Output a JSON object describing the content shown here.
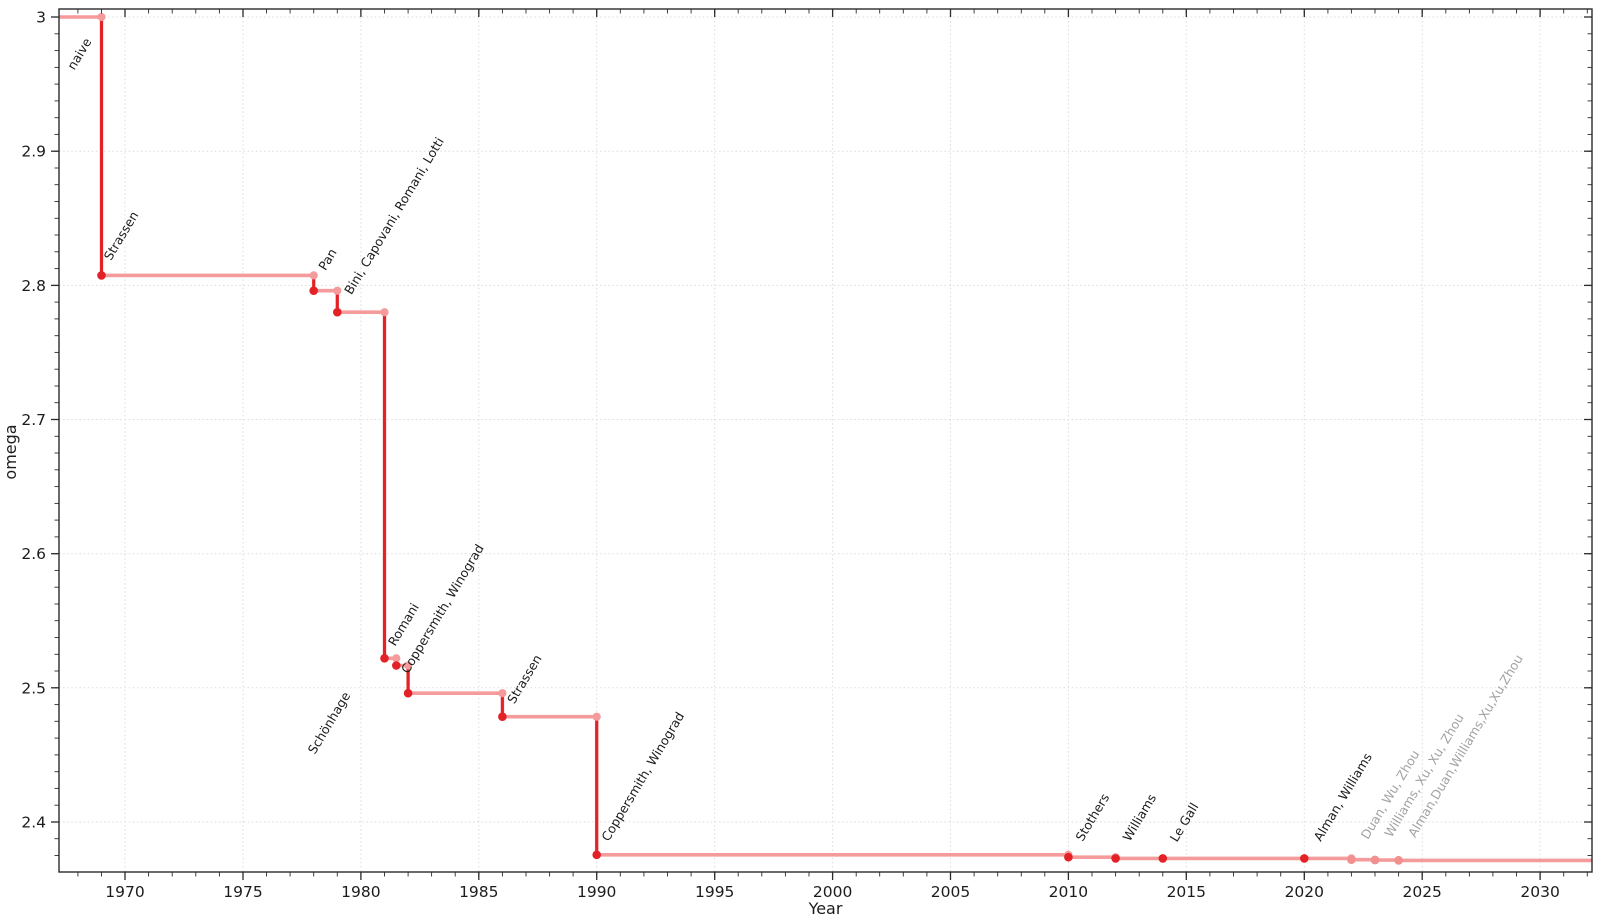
{
  "chart_data": {
    "type": "line",
    "subtype": "step-post",
    "title": "",
    "xlabel": "Year",
    "ylabel": "omega",
    "xlim": [
      1967.2,
      2032.2
    ],
    "ylim": [
      2.3627,
      3.006
    ],
    "x_major_ticks": [
      1970,
      1975,
      1980,
      1985,
      1990,
      1995,
      2000,
      2005,
      2010,
      2015,
      2020,
      2025,
      2030
    ],
    "x_minor_step": 1,
    "y_major_ticks": [
      2.4,
      2.5,
      2.6,
      2.7,
      2.8,
      2.9,
      3.0
    ],
    "y_tick_labels": [
      "2.4",
      "2.5",
      "2.6",
      "2.7",
      "2.8",
      "2.9",
      "3"
    ],
    "y_minor_step": 0.0125,
    "grid": true,
    "legend": false,
    "label_rotation": -59,
    "line_end_year": 2032.2,
    "colors": {
      "background": "#ffffff",
      "grid": "#dcdcdc",
      "frame": "#2b2b2b",
      "tick_label": "#1c1c1c",
      "line": "#f59b9b",
      "accent": "#e32228",
      "recent_marker": "#f28f8f",
      "label": "#1c1c1c",
      "recent_label": "#a3a3a3"
    },
    "points": [
      {
        "label": "naive",
        "year": 1967.2,
        "omega": 3.0,
        "marker": false,
        "recent": false,
        "label_at": [
          1967.85,
          2.96
        ]
      },
      {
        "label": "Strassen",
        "year": 1969,
        "omega": 2.8074,
        "marker": true,
        "recent": false,
        "label_at": [
          1969.4,
          2.818
        ]
      },
      {
        "label": "Pan",
        "year": 1978,
        "omega": 2.796,
        "marker": true,
        "recent": false,
        "label_at": [
          1978.5,
          2.8105
        ]
      },
      {
        "label": "Bini, Capovani, Romani, Lotti",
        "year": 1979,
        "omega": 2.78,
        "marker": true,
        "recent": false,
        "label_at": [
          1979.6,
          2.7925
        ]
      },
      {
        "label": "Schönhage",
        "year": 1981,
        "omega": 2.522,
        "marker": true,
        "recent": false,
        "label_at": [
          1978.05,
          2.45
        ]
      },
      {
        "label": "Romani",
        "year": 1981.5,
        "omega": 2.5166,
        "marker": true,
        "recent": false,
        "label_at": [
          1981.45,
          2.5305
        ]
      },
      {
        "label": "Coppersmith, Winograd",
        "year": 1982,
        "omega": 2.496,
        "marker": true,
        "recent": false,
        "label_at": [
          1982.0,
          2.51
        ]
      },
      {
        "label": "Strassen",
        "year": 1986,
        "omega": 2.4785,
        "marker": true,
        "recent": false,
        "label_at": [
          1986.5,
          2.4875
        ]
      },
      {
        "label": "Coppersmith, Winograd",
        "year": 1990,
        "omega": 2.3755,
        "marker": true,
        "recent": false,
        "label_at": [
          1990.5,
          2.385
        ]
      },
      {
        "label": "Stothers",
        "year": 2010,
        "omega": 2.3737,
        "marker": true,
        "recent": false,
        "label_at": [
          2010.6,
          2.385
        ]
      },
      {
        "label": "Williams",
        "year": 2012,
        "omega": 2.37287,
        "marker": true,
        "recent": false,
        "label_at": [
          2012.6,
          2.385
        ]
      },
      {
        "label": "Le Gall",
        "year": 2014,
        "omega": 2.37286,
        "marker": true,
        "recent": false,
        "label_at": [
          2014.6,
          2.3845
        ]
      },
      {
        "label": "Alman, Williams",
        "year": 2020,
        "omega": 2.37286,
        "marker": true,
        "recent": false,
        "label_at": [
          2020.7,
          2.385
        ]
      },
      {
        "label": "Duan, Wu, Zhou",
        "year": 2022,
        "omega": 2.371866,
        "marker": true,
        "recent": true,
        "label_at": [
          2022.7,
          2.3865
        ]
      },
      {
        "label": "Williams, Xu, Xu, Zhou",
        "year": 2023,
        "omega": 2.371552,
        "marker": true,
        "recent": true,
        "label_at": [
          2023.7,
          2.388
        ]
      },
      {
        "label": "Alman,Duan,Williams,Xu,Xu,Zhou",
        "year": 2024,
        "omega": 2.371339,
        "marker": true,
        "recent": true,
        "label_at": [
          2024.7,
          2.388
        ]
      }
    ]
  }
}
